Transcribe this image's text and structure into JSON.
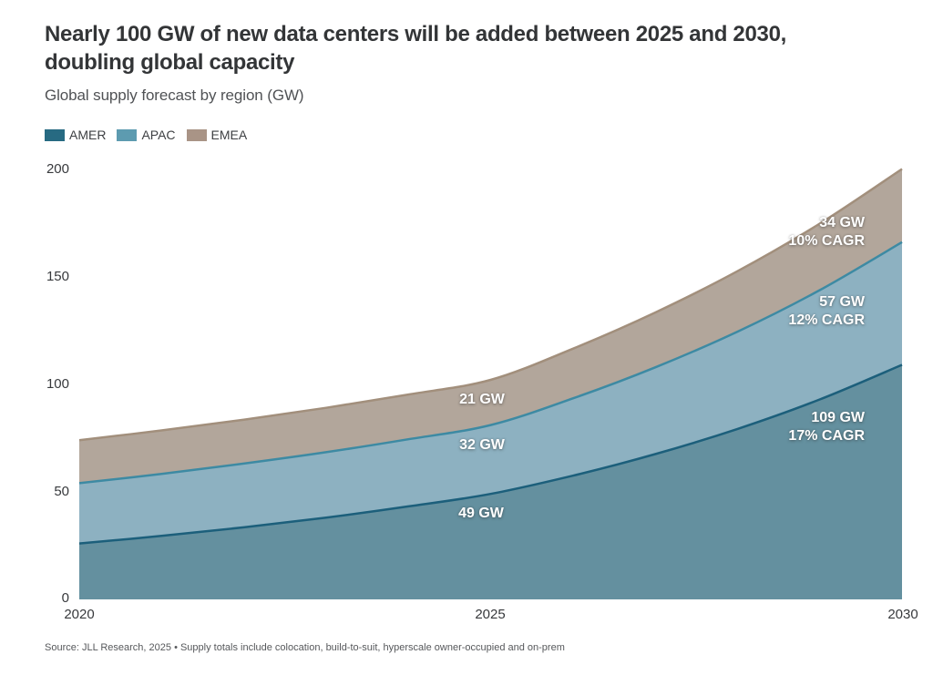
{
  "header": {
    "title_line1": "Nearly 100 GW of new data centers will be added between 2025 and 2030,",
    "title_line2": "doubling global capacity",
    "subtitle": "Global supply forecast by region (GW)"
  },
  "legend": {
    "items": [
      {
        "label": "AMER",
        "color": "#276a82"
      },
      {
        "label": "APAC",
        "color": "#5d9bb0"
      },
      {
        "label": "EMEA",
        "color": "#a99486"
      }
    ]
  },
  "axes": {
    "y": [
      "0",
      "50",
      "100",
      "150",
      "200"
    ],
    "x": [
      "2020",
      "2025",
      "2030"
    ]
  },
  "chart_data": {
    "type": "area",
    "stacked": true,
    "title": "Nearly 100 GW of new data centers will be added between 2025 and 2030, doubling global capacity",
    "subtitle": "Global supply forecast by region (GW)",
    "x": [
      2020,
      2021,
      2022,
      2023,
      2024,
      2025,
      2026,
      2027,
      2028,
      2029,
      2030
    ],
    "series": [
      {
        "name": "AMER",
        "values": [
          26,
          29.5,
          33.5,
          38,
          43.2,
          49,
          57.5,
          67.5,
          79.2,
          92.9,
          109
        ],
        "fill": "#64909f",
        "stroke": "#1c5f7b",
        "value_2025": 49,
        "value_2030": 109,
        "cagr_2025_2030": "17%"
      },
      {
        "name": "APAC",
        "values": [
          28,
          28.8,
          29.6,
          30.4,
          31.2,
          32,
          35.9,
          40.3,
          45.2,
          50.8,
          57
        ],
        "fill": "#8db1c1",
        "stroke": "#3d8aa3",
        "value_2025": 32,
        "value_2030": 57,
        "cagr_2025_2030": "12%"
      },
      {
        "name": "EMEA",
        "values": [
          20,
          20.2,
          20.4,
          20.6,
          20.8,
          21,
          23.1,
          25.5,
          28.1,
          30.9,
          34
        ],
        "fill": "#b2a69b",
        "stroke": "#a28f7c",
        "value_2025": 21,
        "value_2030": 34,
        "cagr_2025_2030": "10%"
      }
    ],
    "ylim": [
      0,
      200
    ],
    "yticks": [
      0,
      50,
      100,
      150,
      200
    ],
    "xticks": [
      2020,
      2025,
      2030
    ],
    "grid": false,
    "legend_position": "top-left",
    "annotations": [
      {
        "series": "AMER",
        "x": 2025,
        "text": "49 GW"
      },
      {
        "series": "APAC",
        "x": 2025,
        "text": "32 GW"
      },
      {
        "series": "EMEA",
        "x": 2025,
        "text": "21 GW"
      },
      {
        "series": "AMER",
        "x": 2030,
        "text": "109 GW / 17% CAGR"
      },
      {
        "series": "APAC",
        "x": 2030,
        "text": "57 GW / 12% CAGR"
      },
      {
        "series": "EMEA",
        "x": 2030,
        "text": "34 GW / 10% CAGR"
      }
    ]
  },
  "annotations": {
    "amer_2025": "49 GW",
    "apac_2025": "32 GW",
    "emea_2025": "21 GW",
    "amer_2030_value": "109 GW",
    "amer_2030_cagr": "17% CAGR",
    "apac_2030_value": "57 GW",
    "apac_2030_cagr": "12% CAGR",
    "emea_2030_value": "34 GW",
    "emea_2030_cagr": "10% CAGR"
  },
  "footer": {
    "source": "Source: JLL Research, 2025 • Supply totals include colocation, build-to-suit, hyperscale owner-occupied and on-prem"
  }
}
